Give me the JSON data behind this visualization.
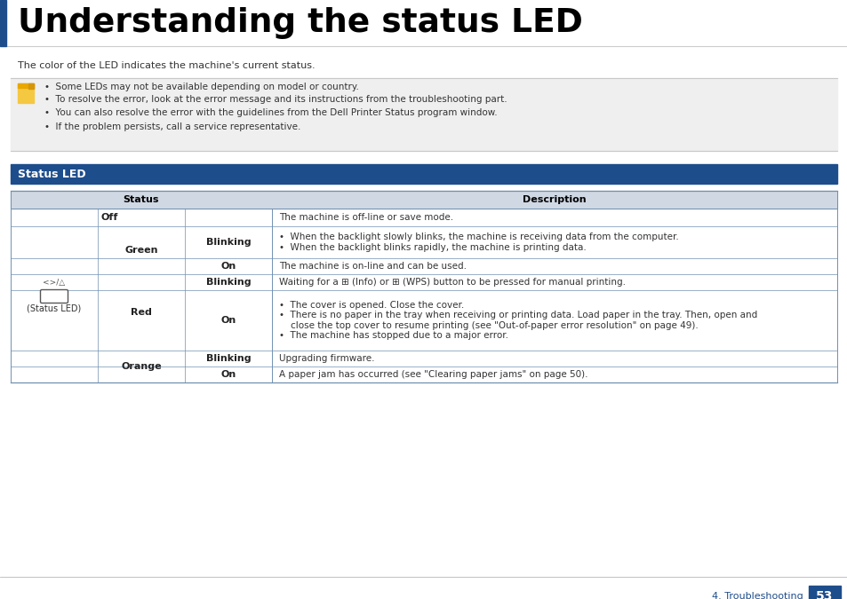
{
  "title": "Understanding the status LED",
  "title_bar_color": "#1e4d8c",
  "subtitle": "The color of the LED indicates the machine's current status.",
  "note_lines": [
    "Some LEDs may not be available depending on model or country.",
    "To resolve the error, look at the error message and its instructions from the troubleshooting part.",
    "You can also resolve the error with the guidelines from the Dell Printer Status program window.",
    "If the problem persists, call a service representative."
  ],
  "section_title": "Status LED",
  "section_bg": "#1e4d8c",
  "section_text_color": "#ffffff",
  "table_header_bg": "#d0d8e4",
  "table_line_color": "#7090b0",
  "note_bg": "#efefef",
  "note_border": "#c8c8c8",
  "page_number": "53",
  "page_label": "4. Troubleshooting",
  "rows": [
    {
      "color": "",
      "state": "",
      "desc": "",
      "header": true
    },
    {
      "color": "Off",
      "state": "",
      "desc": "The machine is off-line or save mode.",
      "span_start": true,
      "span_rows": 1
    },
    {
      "color": "Green",
      "state": "Blinking",
      "desc": "•  When the backlight slowly blinks, the machine is receiving data from the computer.\n•  When the backlight blinks rapidly, the machine is printing data.",
      "span_start": true,
      "span_rows": 2
    },
    {
      "color": "",
      "state": "On",
      "desc": "The machine is on-line and can be used.",
      "span_start": false
    },
    {
      "color": "Red",
      "state": "Blinking",
      "desc": "Waiting for a (Info) or (WPS) button to be pressed for manual printing.",
      "span_start": true,
      "span_rows": 2
    },
    {
      "color": "",
      "state": "On",
      "desc": "•  The cover is opened. Close the cover.\n•  There is no paper in the tray when receiving or printing data. Load paper in the tray. Then, open and\n    close the top cover to resume printing (see \"Out-of-paper error resolution\" on page 49).\n•  The machine has stopped due to a major error.",
      "span_start": false
    },
    {
      "color": "Orange",
      "state": "Blinking",
      "desc": "Upgrading firmware.",
      "span_start": true,
      "span_rows": 2
    },
    {
      "color": "",
      "state": "On",
      "desc": "A paper jam has occurred (see \"Clearing paper jams\" on page 50).",
      "span_start": false
    }
  ]
}
